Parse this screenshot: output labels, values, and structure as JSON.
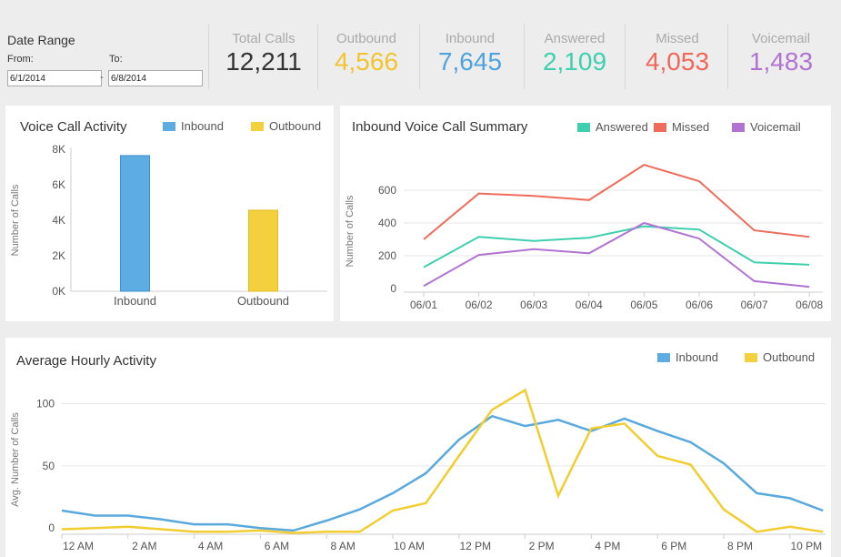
{
  "header": {
    "date_range_label": "Date Range",
    "from_label": "From:",
    "to_label": "To:",
    "from_value": "6/1/2014",
    "to_value": "6/8/2014",
    "separator": "-"
  },
  "kpis": [
    {
      "label": "Total Calls",
      "value": "12,211",
      "color": "#333333"
    },
    {
      "label": "Outbound",
      "value": "4,566",
      "color": "#f2c42f"
    },
    {
      "label": "Inbound",
      "value": "7,645",
      "color": "#4ea3de"
    },
    {
      "label": "Answered",
      "value": "2,109",
      "color": "#3ecfae"
    },
    {
      "label": "Missed",
      "value": "4,053",
      "color": "#f0665a"
    },
    {
      "label": "Voicemail",
      "value": "1,483",
      "color": "#b073d2"
    }
  ],
  "colors": {
    "inbound": "#5dade2",
    "outbound": "#f4d03f",
    "answered": "#3ecfae",
    "missed": "#ef6b5b",
    "voicemail": "#b073d2"
  },
  "chart_data": [
    {
      "type": "bar",
      "title": "Voice Call Activity",
      "categories": [
        "Inbound",
        "Outbound"
      ],
      "values": [
        7645,
        4566
      ],
      "legend": [
        "Inbound",
        "Outbound"
      ],
      "ylabel": "Number of Calls",
      "ylim": [
        0,
        8000
      ],
      "yticks": [
        0,
        2000,
        4000,
        6000,
        8000
      ],
      "ytick_labels": [
        "0K",
        "2K",
        "4K",
        "6K",
        "8K"
      ]
    },
    {
      "type": "line",
      "title": "Inbound Voice Call Summary",
      "x": [
        "06/01",
        "06/02",
        "06/03",
        "06/04",
        "06/05",
        "06/06",
        "06/07",
        "06/08"
      ],
      "series": [
        {
          "name": "Answered",
          "values": [
            130,
            315,
            290,
            310,
            380,
            360,
            160,
            145
          ]
        },
        {
          "name": "Missed",
          "values": [
            300,
            580,
            565,
            540,
            755,
            655,
            355,
            315
          ]
        },
        {
          "name": "Voicemail",
          "values": [
            15,
            205,
            240,
            215,
            400,
            305,
            45,
            10
          ]
        }
      ],
      "ylabel": "Number of Calls",
      "ylim": [
        0,
        750
      ],
      "yticks": [
        0,
        200,
        400,
        600
      ],
      "grid": true
    },
    {
      "type": "line",
      "title": "Average Hourly Activity",
      "x": [
        "12 AM",
        "1 AM",
        "2 AM",
        "3 AM",
        "4 AM",
        "5 AM",
        "6 AM",
        "7 AM",
        "8 AM",
        "9 AM",
        "10 AM",
        "11 AM",
        "12 PM",
        "1 PM",
        "2 PM",
        "3 PM",
        "4 PM",
        "5 PM",
        "6 PM",
        "7 PM",
        "8 PM",
        "9 PM",
        "10 PM",
        "11 PM"
      ],
      "xtick_labels": [
        "12 AM",
        "2 AM",
        "4 AM",
        "6 AM",
        "8 AM",
        "10 AM",
        "12 PM",
        "2 PM",
        "4 PM",
        "6 PM",
        "8 PM",
        "10 PM"
      ],
      "series": [
        {
          "name": "Inbound",
          "values": [
            14,
            10,
            10,
            7,
            3,
            3,
            0,
            -2,
            6,
            15,
            28,
            44,
            71,
            90,
            82,
            87,
            78,
            88,
            78,
            69,
            52,
            28,
            24,
            14
          ]
        },
        {
          "name": "Outbound",
          "values": [
            -1,
            0,
            1,
            -1,
            -3,
            -3,
            -2,
            -4,
            -3,
            -3,
            14,
            20,
            58,
            95,
            111,
            26,
            80,
            84,
            58,
            51,
            15,
            -3,
            1,
            -3
          ]
        }
      ],
      "ylabel": "Avg. Number of Calls",
      "ylim": [
        -5,
        115
      ],
      "yticks": [
        0,
        50,
        100
      ],
      "grid": true
    }
  ]
}
